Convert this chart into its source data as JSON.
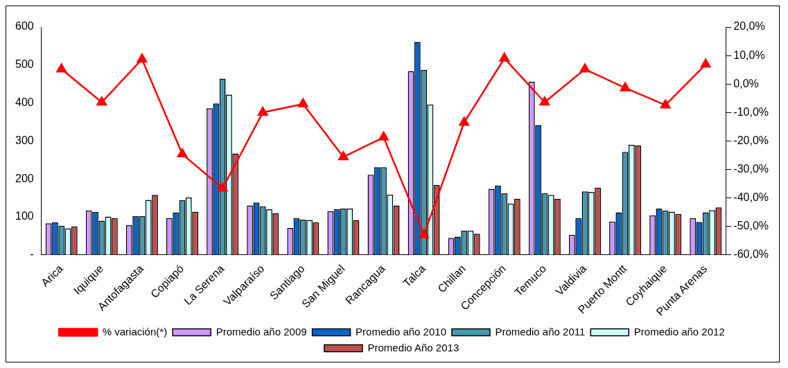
{
  "chart_data": {
    "type": "bar",
    "categories": [
      "Arica",
      "Iquique",
      "Antofagasta",
      "Copiapó",
      "La Serena",
      "Valparaíso",
      "Santiago",
      "San Miguel",
      "Rancagua",
      "Talca",
      "Chillan",
      "Concepción",
      "Temuco",
      "Valdivia",
      "Puerto Montt",
      "Coyhaique",
      "Punta Arenas"
    ],
    "series": [
      {
        "name": "Promedio año 2009",
        "color": "#cc99ff",
        "values": [
          83,
          117,
          78,
          97,
          386,
          130,
          71,
          115,
          211,
          484,
          45,
          174,
          456,
          53,
          88,
          104,
          97
        ]
      },
      {
        "name": "Promedio año 2010",
        "color": "#0066cc",
        "values": [
          86,
          113,
          102,
          112,
          399,
          138,
          97,
          120,
          231,
          561,
          48,
          182,
          342,
          97,
          112,
          122,
          87
        ]
      },
      {
        "name": "Promedio año 2011",
        "color": "#4499b0",
        "values": [
          77,
          90,
          102,
          144,
          464,
          128,
          93,
          122,
          231,
          487,
          64,
          162,
          162,
          167,
          271,
          117,
          112
        ]
      },
      {
        "name": "Promedio año 2012",
        "color": "#ccffff",
        "values": [
          70,
          101,
          145,
          151,
          422,
          120,
          92,
          122,
          159,
          396,
          64,
          135,
          158,
          166,
          290,
          114,
          118
        ]
      },
      {
        "name": "Promedio Año 2013",
        "color": "#c0504d",
        "values": [
          75,
          97,
          158,
          114,
          267,
          110,
          86,
          92,
          130,
          184,
          56,
          148,
          148,
          177,
          288,
          108,
          125
        ]
      },
      {
        "name": "% variación(*)",
        "type": "line",
        "axis": "y2",
        "color": "#ff0000",
        "marker": "triangle",
        "values": [
          5.2,
          -6.4,
          8.7,
          -24.6,
          -36.6,
          -10,
          -7,
          -25.6,
          -18.7,
          -53,
          -13.5,
          9,
          -6.4,
          5.2,
          -1.4,
          -7.4,
          6.9
        ]
      }
    ],
    "ylim": [
      0,
      600
    ],
    "yticks": [
      {
        "value": 0,
        "label": "-"
      },
      100,
      200,
      300,
      400,
      500,
      600
    ],
    "y2lim": [
      -60,
      20
    ],
    "y2ticks": [
      {
        "value": -60,
        "label": "-60,0%"
      },
      {
        "value": -50,
        "label": "-50,0%"
      },
      {
        "value": -40,
        "label": "-40,0%"
      },
      {
        "value": -30,
        "label": "-30,0%"
      },
      {
        "value": -20,
        "label": "-20,0%"
      },
      {
        "value": -10,
        "label": "-10,0%"
      },
      {
        "value": 0,
        "label": "0,0%"
      },
      {
        "value": 10,
        "label": "10,0%"
      },
      {
        "value": 20,
        "label": "20,0%"
      }
    ],
    "grid": false,
    "legend": "bottom"
  }
}
